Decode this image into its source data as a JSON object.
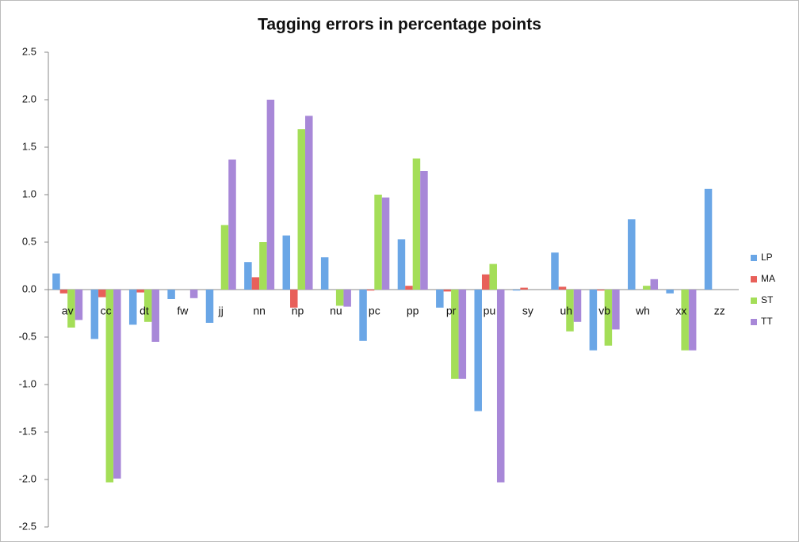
{
  "chart_data": {
    "type": "bar",
    "title": "Tagging errors in percentage points",
    "categories": [
      "av",
      "cc",
      "dt",
      "fw",
      "jj",
      "nn",
      "np",
      "nu",
      "pc",
      "pp",
      "pr",
      "pu",
      "sy",
      "uh",
      "vb",
      "wh",
      "xx",
      "zz"
    ],
    "series": [
      {
        "name": "LP",
        "color": "#6aa6e6",
        "values": [
          0.17,
          -0.52,
          -0.37,
          -0.1,
          -0.35,
          0.29,
          0.57,
          0.34,
          -0.54,
          0.53,
          -0.19,
          -1.28,
          -0.01,
          0.39,
          -0.64,
          0.74,
          -0.04,
          1.06
        ]
      },
      {
        "name": "MA",
        "color": "#e8605a",
        "values": [
          -0.04,
          -0.08,
          -0.03,
          0,
          0,
          0.13,
          -0.19,
          0,
          -0.01,
          0.04,
          -0.02,
          0.16,
          0.02,
          0.03,
          -0.01,
          0,
          0,
          0
        ]
      },
      {
        "name": "ST",
        "color": "#a4de58",
        "values": [
          -0.4,
          -2.03,
          -0.34,
          0,
          0.68,
          0.5,
          1.69,
          -0.17,
          1.0,
          1.38,
          -0.94,
          0.27,
          0,
          -0.44,
          -0.59,
          0.04,
          -0.64,
          0
        ]
      },
      {
        "name": "TT",
        "color": "#a888d8",
        "values": [
          -0.32,
          -1.99,
          -0.55,
          -0.09,
          1.37,
          2.0,
          1.83,
          -0.18,
          0.97,
          1.25,
          -0.94,
          -2.03,
          0,
          -0.34,
          -0.42,
          0.11,
          -0.64,
          0
        ]
      }
    ],
    "ylim": [
      -2.5,
      2.5
    ],
    "yticks": [
      -2.5,
      {
        "value": -2,
        "label": "-2.0"
      },
      -1.5,
      {
        "value": -1,
        "label": "-1.0"
      },
      -0.5,
      {
        "value": 0,
        "label": "0.0"
      },
      0.5,
      {
        "value": 1,
        "label": "1.0"
      },
      1.5,
      {
        "value": 2,
        "label": "2.0"
      },
      2.5
    ],
    "legend": "right"
  }
}
